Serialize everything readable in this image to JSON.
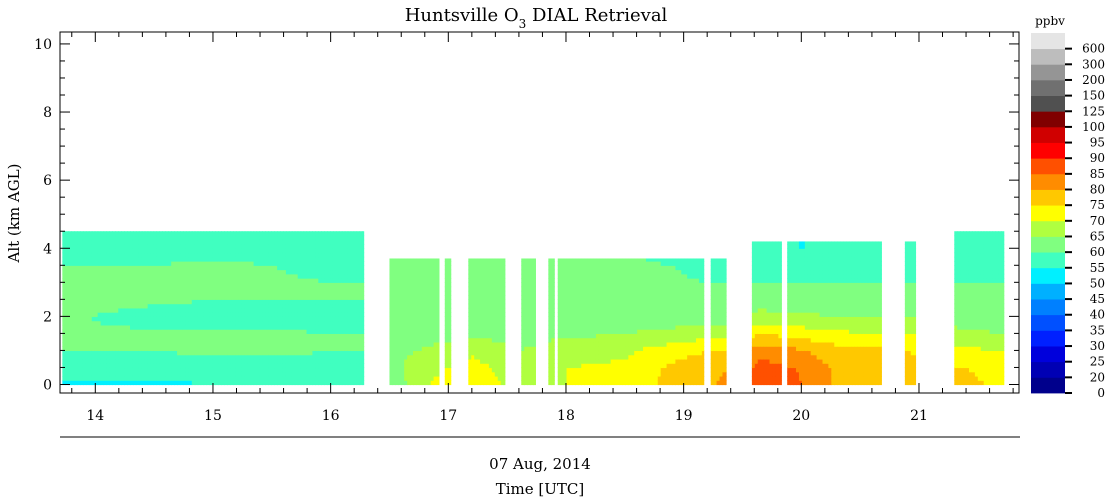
{
  "chart_data": {
    "type": "heatmap",
    "title": "Huntsville O",
    "title_subscript": "3",
    "title_suffix": " DIAL Retrieval",
    "ylabel": "Alt (km AGL)",
    "xlabel": "Time [UTC]",
    "date_label": "07 Aug, 2014",
    "x_ticks": [
      "14",
      "15",
      "16",
      "17",
      "18",
      "19",
      "20",
      "21"
    ],
    "xlim": [
      13.7,
      21.85
    ],
    "y_ticks": [
      "0",
      "2",
      "4",
      "6",
      "8",
      "10"
    ],
    "ylim": [
      -0.25,
      10.35
    ],
    "colorbar": {
      "unit": "ppbv",
      "levels": [
        "0",
        "20",
        "25",
        "30",
        "35",
        "40",
        "45",
        "50",
        "55",
        "60",
        "65",
        "70",
        "75",
        "80",
        "85",
        "90",
        "95",
        "100",
        "125",
        "150",
        "200",
        "300",
        "600"
      ],
      "colors": [
        "#00008c",
        "#0000b4",
        "#0000dc",
        "#0020ff",
        "#0050ff",
        "#0080ff",
        "#00b0ff",
        "#00f0ff",
        "#40ffc0",
        "#80ff80",
        "#b0ff40",
        "#ffff00",
        "#ffc800",
        "#ff8c00",
        "#ff5000",
        "#ff0000",
        "#d00000",
        "#800000",
        "#505050",
        "#707070",
        "#959595",
        "#bdbdbd",
        "#e5e5e5"
      ]
    },
    "segments": [
      {
        "start": 13.72,
        "end": 16.28,
        "top": 4.5
      },
      {
        "start": 16.5,
        "end": 16.92,
        "top": 3.7
      },
      {
        "start": 16.97,
        "end": 17.02,
        "top": 3.7
      },
      {
        "start": 17.17,
        "end": 17.48,
        "top": 3.7
      },
      {
        "start": 17.62,
        "end": 17.74,
        "top": 3.7
      },
      {
        "start": 17.85,
        "end": 17.9,
        "top": 3.7
      },
      {
        "start": 17.93,
        "end": 18.73,
        "top": 3.7
      },
      {
        "start": 18.73,
        "end": 19.17,
        "top": 3.7
      },
      {
        "start": 19.23,
        "end": 19.36,
        "top": 3.7
      },
      {
        "start": 19.58,
        "end": 19.83,
        "top": 4.2
      },
      {
        "start": 19.88,
        "end": 20.68,
        "top": 4.2
      },
      {
        "start": 20.88,
        "end": 20.97,
        "top": 4.2
      },
      {
        "start": 21.3,
        "end": 21.72,
        "top": 4.5
      }
    ],
    "profiles": [
      {
        "t": 13.7,
        "o3": [
          54,
          58,
          60,
          60,
          61,
          62,
          61,
          60,
          58,
          56
        ]
      },
      {
        "t": 14.5,
        "o3": [
          54,
          57,
          60,
          61,
          58,
          61,
          61,
          60,
          58,
          57
        ]
      },
      {
        "t": 15.0,
        "o3": [
          55,
          58,
          61,
          61,
          57,
          60,
          61,
          61,
          58,
          57
        ]
      },
      {
        "t": 15.5,
        "o3": [
          56,
          58,
          61,
          61,
          57,
          60,
          61,
          60,
          58,
          57
        ]
      },
      {
        "t": 16.0,
        "o3": [
          56,
          58,
          60,
          60,
          57,
          60,
          60,
          58,
          58,
          60
        ]
      },
      {
        "t": 16.3,
        "o3": [
          56,
          58,
          60,
          60,
          57,
          60,
          60,
          58,
          58,
          60
        ]
      },
      {
        "t": 16.5,
        "o3": [
          60,
          62,
          64,
          63,
          61,
          62,
          62,
          61,
          60,
          60
        ]
      },
      {
        "t": 16.75,
        "o3": [
          69,
          68,
          65,
          63,
          62,
          61,
          62,
          61,
          60,
          60
        ]
      },
      {
        "t": 17.2,
        "o3": [
          74,
          72,
          69,
          64,
          63,
          62,
          62,
          61,
          60,
          60
        ]
      },
      {
        "t": 17.6,
        "o3": [
          68,
          67,
          65,
          63,
          62,
          62,
          62,
          61,
          60,
          60
        ]
      },
      {
        "t": 18.0,
        "o3": [
          70,
          70,
          68,
          64,
          62,
          62,
          62,
          61,
          61,
          60
        ]
      },
      {
        "t": 18.5,
        "o3": [
          71,
          71,
          69,
          65,
          63,
          62,
          62,
          61,
          60,
          60
        ]
      },
      {
        "t": 18.9,
        "o3": [
          77,
          76,
          73,
          66,
          63,
          62,
          61,
          60,
          58,
          57
        ]
      },
      {
        "t": 19.2,
        "o3": [
          79,
          78,
          75,
          68,
          63,
          62,
          60,
          58,
          56,
          55
        ]
      },
      {
        "t": 19.4,
        "o3": [
          82,
          80,
          76,
          68,
          63,
          62,
          60,
          58,
          56,
          55
        ]
      },
      {
        "t": 19.65,
        "o3": [
          88,
          87,
          83,
          75,
          67,
          62,
          60,
          57,
          55,
          55
        ]
      },
      {
        "t": 19.95,
        "o3": [
          86,
          85,
          81,
          73,
          66,
          62,
          60,
          57,
          55,
          55
        ]
      },
      {
        "t": 20.3,
        "o3": [
          79,
          79,
          77,
          71,
          65,
          62,
          60,
          57,
          55,
          55
        ]
      },
      {
        "t": 20.65,
        "o3": [
          78,
          78,
          76,
          70,
          65,
          62,
          60,
          57,
          55,
          55
        ]
      },
      {
        "t": 20.9,
        "o3": [
          77,
          77,
          75,
          70,
          65,
          62,
          60,
          58,
          56,
          56
        ]
      },
      {
        "t": 21.4,
        "o3": [
          76,
          75,
          71,
          66,
          62,
          61,
          60,
          58,
          56,
          55
        ]
      },
      {
        "t": 21.75,
        "o3": [
          74,
          73,
          70,
          65,
          62,
          61,
          60,
          58,
          56,
          55
        ]
      }
    ]
  }
}
